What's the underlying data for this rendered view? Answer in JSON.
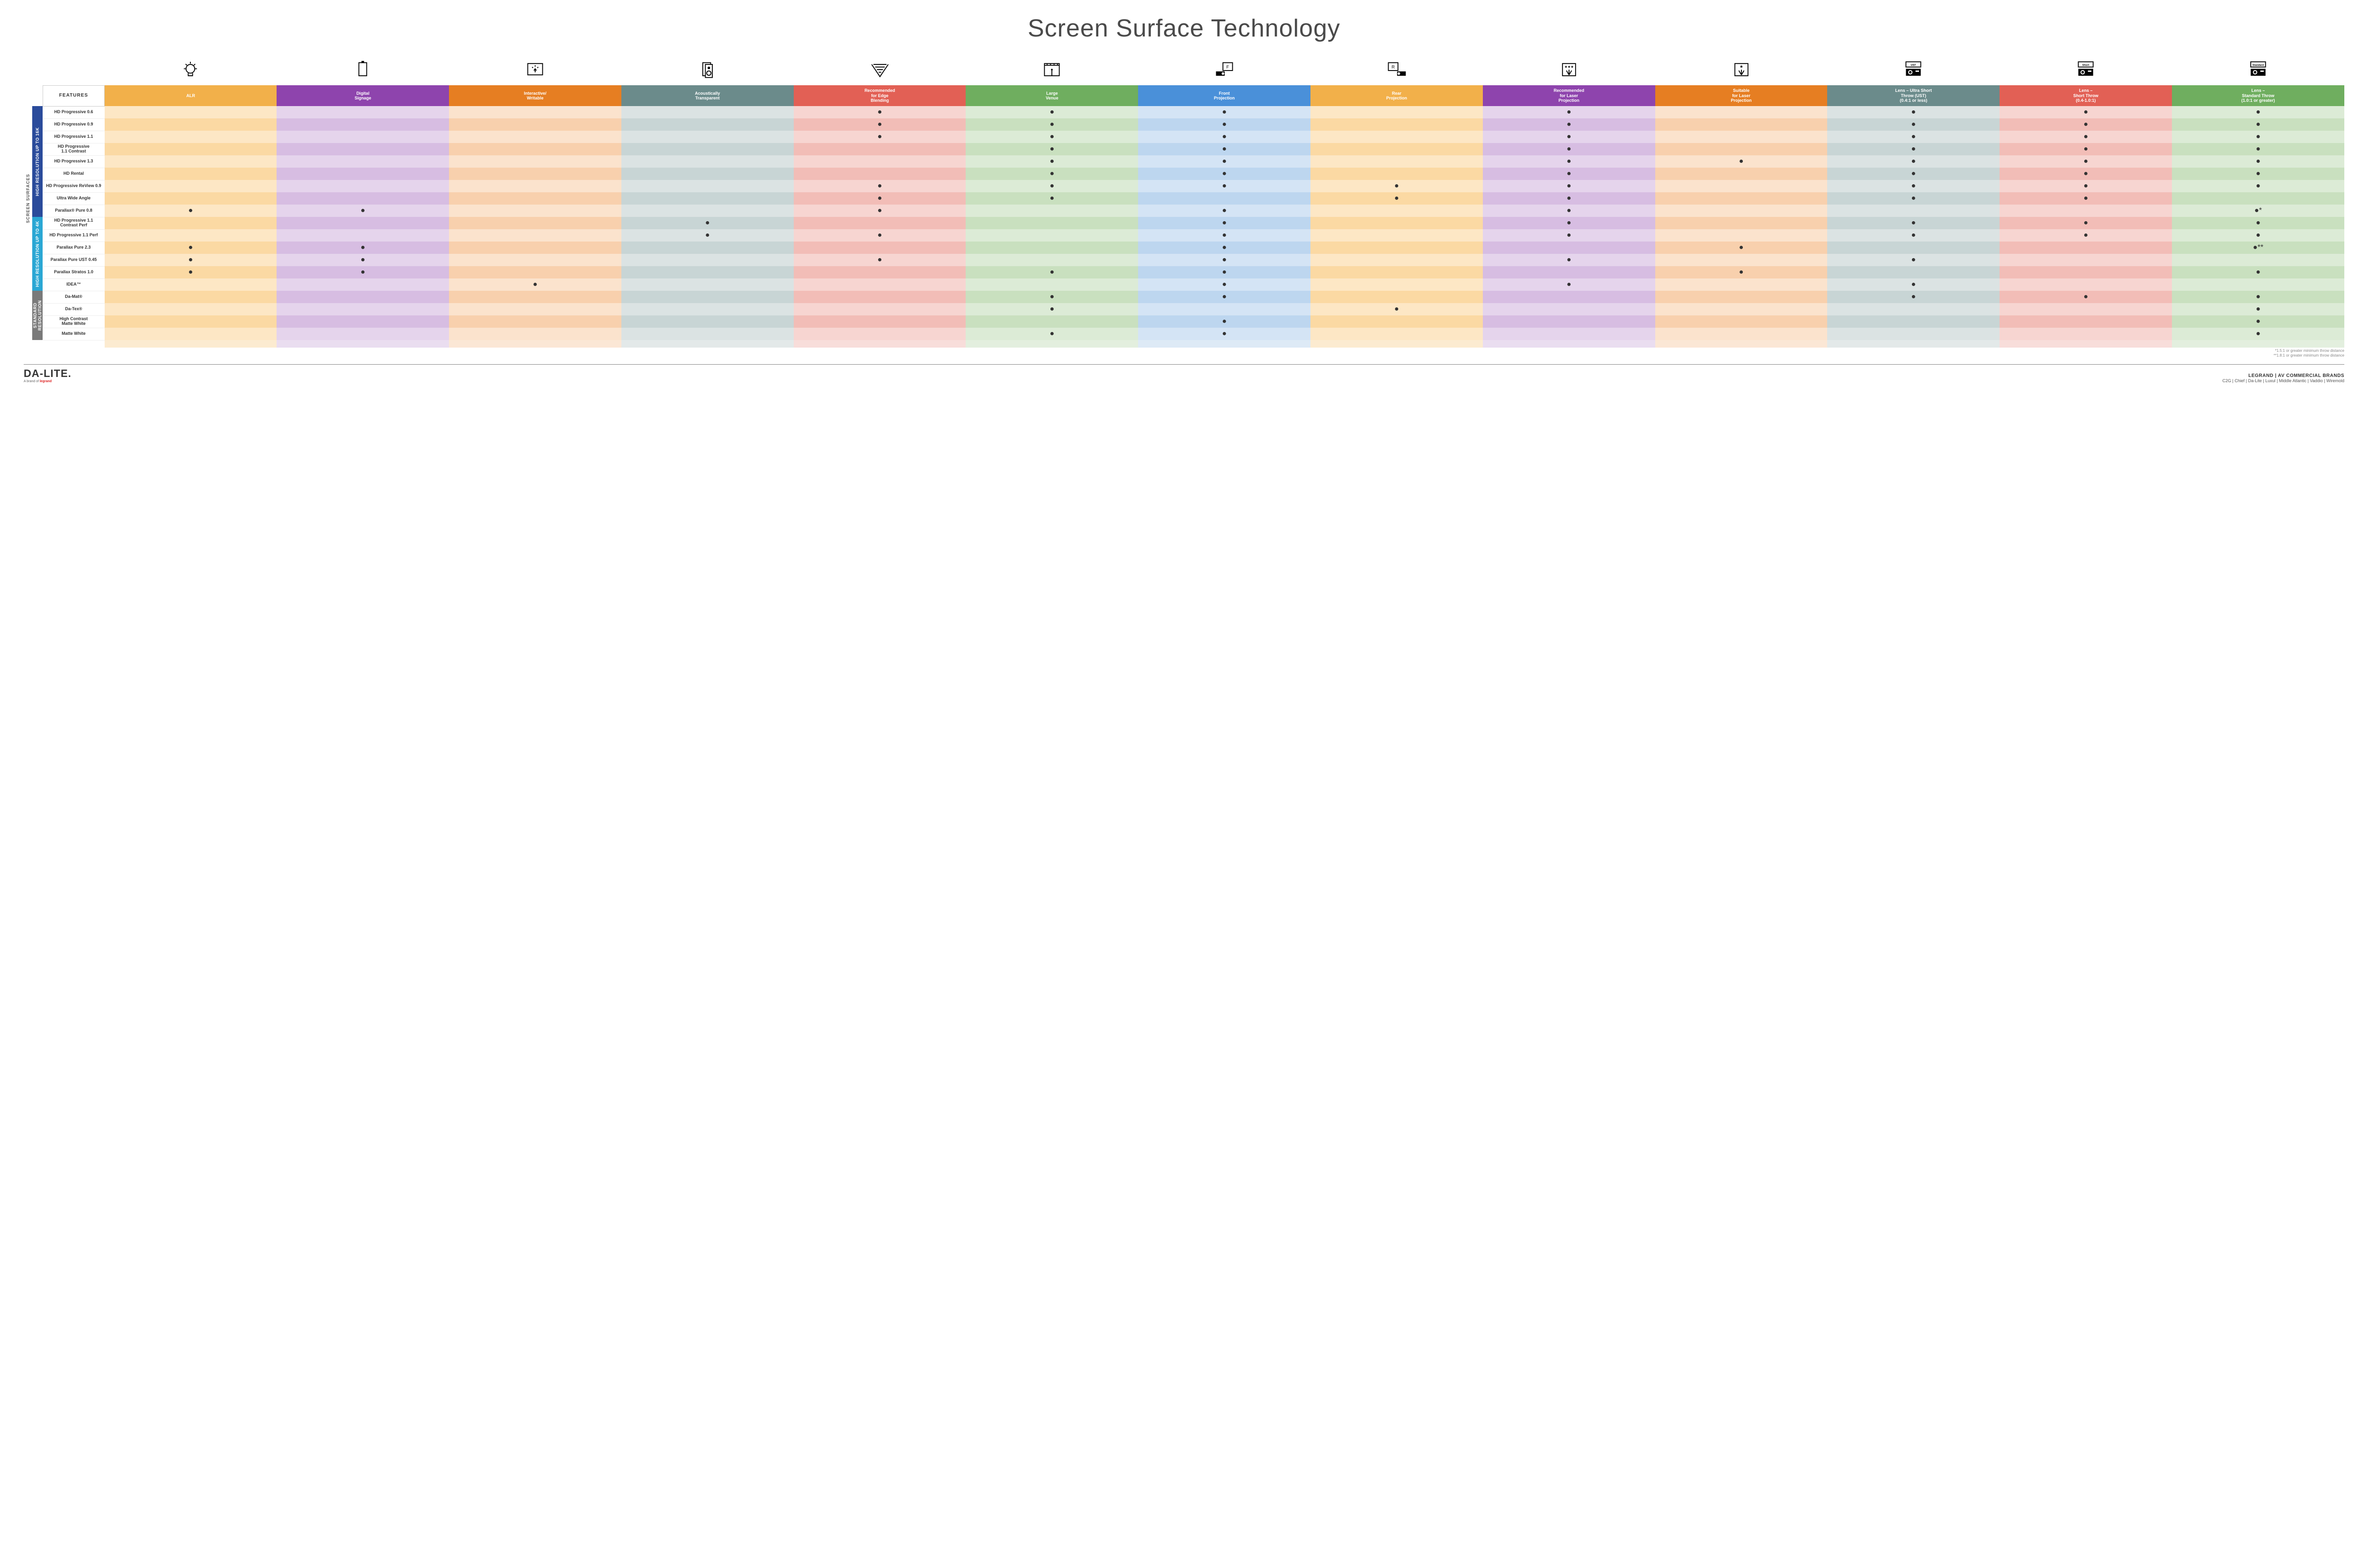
{
  "title": "Screen Surface Technology",
  "side_label": "SCREEN SURFACES",
  "features_header": "FEATURES",
  "colors": {
    "group_16k": "#2a4b9b",
    "group_4k": "#2aa7d4",
    "group_std": "#7a7a7a"
  },
  "columns": [
    {
      "id": "alr",
      "label": "ALR",
      "color": "#f2b04a",
      "icon": "bulb"
    },
    {
      "id": "signage",
      "label": "Digital\nSignage",
      "color": "#8e44ad",
      "icon": "sign"
    },
    {
      "id": "interactive",
      "label": "Interactive/\nWritable",
      "color": "#e67e22",
      "icon": "touch"
    },
    {
      "id": "acoustic",
      "label": "Acoustically\nTransparent",
      "color": "#6b8b8b",
      "icon": "speaker"
    },
    {
      "id": "edge",
      "label": "Recommended\nfor Edge\nBlending",
      "color": "#e26055",
      "icon": "blend"
    },
    {
      "id": "venue",
      "label": "Large\nVenue",
      "color": "#6fae5f",
      "icon": "venue"
    },
    {
      "id": "front",
      "label": "Front\nProjection",
      "color": "#4a90d9",
      "icon": "front"
    },
    {
      "id": "rear",
      "label": "Rear\nProjection",
      "color": "#f2b04a",
      "icon": "rear"
    },
    {
      "id": "reclaser",
      "label": "Recommended\nfor Laser\nProjection",
      "color": "#8e44ad",
      "icon": "laser3"
    },
    {
      "id": "suitlaser",
      "label": "Suitable\nfor Laser\nProjection",
      "color": "#e67e22",
      "icon": "laser1"
    },
    {
      "id": "ust",
      "label": "Lens – Ultra Short\nThrow (UST)\n(0.4:1 or less)",
      "color": "#6b8b8b",
      "icon": "proj",
      "proj_label": "UST"
    },
    {
      "id": "short",
      "label": "Lens –\nShort Throw\n(0.4-1.0:1)",
      "color": "#e26055",
      "icon": "proj",
      "proj_label": "Short"
    },
    {
      "id": "std",
      "label": "Lens –\nStandard Throw\n(1.0:1 or greater)",
      "color": "#6fae5f",
      "icon": "proj",
      "proj_label": "Standard"
    }
  ],
  "tints": {
    "#f2b04a": [
      "#fde7c5",
      "#fbd9a3"
    ],
    "#8e44ad": [
      "#e5d4ec",
      "#d7bde2"
    ],
    "#e67e22": [
      "#fbe3cd",
      "#f8d0ad"
    ],
    "#6b8b8b": [
      "#dbe3e3",
      "#c8d5d5"
    ],
    "#e26055": [
      "#f7d5d1",
      "#f2bdb7"
    ],
    "#6fae5f": [
      "#dcebd6",
      "#c9e0bf"
    ],
    "#4a90d9": [
      "#d4e4f5",
      "#bdd6ef"
    ]
  },
  "groups": [
    {
      "id": "g16k",
      "label": "HIGH RESOLUTION UP TO 16K",
      "color": "#2a4b9b",
      "rows": [
        {
          "name": "HD Progressive 0.6",
          "dots": {
            "edge": "●",
            "venue": "●",
            "front": "●",
            "reclaser": "●",
            "ust": "●",
            "short": "●",
            "std": "●"
          }
        },
        {
          "name": "HD Progressive 0.9",
          "dots": {
            "edge": "●",
            "venue": "●",
            "front": "●",
            "reclaser": "●",
            "ust": "●",
            "short": "●",
            "std": "●"
          }
        },
        {
          "name": "HD Progressive 1.1",
          "dots": {
            "edge": "●",
            "venue": "●",
            "front": "●",
            "reclaser": "●",
            "ust": "●",
            "short": "●",
            "std": "●"
          }
        },
        {
          "name": "HD Progressive\n1.1 Contrast",
          "dots": {
            "venue": "●",
            "front": "●",
            "reclaser": "●",
            "ust": "●",
            "short": "●",
            "std": "●"
          }
        },
        {
          "name": "HD Progressive 1.3",
          "dots": {
            "venue": "●",
            "front": "●",
            "reclaser": "●",
            "suitlaser": "●",
            "ust": "●",
            "short": "●",
            "std": "●"
          }
        },
        {
          "name": "HD Rental",
          "dots": {
            "venue": "●",
            "front": "●",
            "reclaser": "●",
            "ust": "●",
            "short": "●",
            "std": "●"
          }
        },
        {
          "name": "HD Progressive ReView 0.9",
          "dots": {
            "edge": "●",
            "venue": "●",
            "front": "●",
            "rear": "●",
            "reclaser": "●",
            "ust": "●",
            "short": "●",
            "std": "●"
          }
        },
        {
          "name": "Ultra Wide Angle",
          "dots": {
            "edge": "●",
            "venue": "●",
            "rear": "●",
            "reclaser": "●",
            "ust": "●",
            "short": "●"
          }
        },
        {
          "name": "Parallax® Pure 0.8",
          "dots": {
            "alr": "●",
            "signage": "●",
            "edge": "●",
            "front": "●",
            "reclaser": "●",
            "std": "●*"
          }
        }
      ]
    },
    {
      "id": "g4k",
      "label": "HIGH RESOLUTION UP TO 4K",
      "color": "#2aa7d4",
      "rows": [
        {
          "name": "HD Progressive 1.1\nContrast Perf",
          "dots": {
            "acoustic": "●",
            "front": "●",
            "reclaser": "●",
            "ust": "●",
            "short": "●",
            "std": "●"
          }
        },
        {
          "name": "HD Progressive 1.1 Perf",
          "dots": {
            "acoustic": "●",
            "edge": "●",
            "front": "●",
            "reclaser": "●",
            "ust": "●",
            "short": "●",
            "std": "●"
          }
        },
        {
          "name": "Parallax Pure 2.3",
          "dots": {
            "alr": "●",
            "signage": "●",
            "front": "●",
            "suitlaser": "●",
            "std": "●**"
          }
        },
        {
          "name": "Parallax Pure UST 0.45",
          "dots": {
            "alr": "●",
            "signage": "●",
            "edge": "●",
            "front": "●",
            "reclaser": "●",
            "ust": "●"
          }
        },
        {
          "name": "Parallax Stratos 1.0",
          "dots": {
            "alr": "●",
            "signage": "●",
            "venue": "●",
            "front": "●",
            "suitlaser": "●",
            "std": "●"
          }
        },
        {
          "name": "IDEA™",
          "dots": {
            "interactive": "●",
            "front": "●",
            "reclaser": "●",
            "ust": "●"
          }
        }
      ]
    },
    {
      "id": "gstd",
      "label": "STANDARD\nRESOLUTION",
      "color": "#7a7a7a",
      "rows": [
        {
          "name": "Da-Mat®",
          "dots": {
            "venue": "●",
            "front": "●",
            "ust": "●",
            "short": "●",
            "std": "●"
          }
        },
        {
          "name": "Da-Tex®",
          "dots": {
            "venue": "●",
            "rear": "●",
            "std": "●"
          }
        },
        {
          "name": "High Contrast\nMatte White",
          "dots": {
            "front": "●",
            "std": "●"
          }
        },
        {
          "name": "Matte White",
          "dots": {
            "venue": "●",
            "front": "●",
            "std": "●"
          }
        }
      ]
    }
  ],
  "footnotes": [
    "*1.5:1 or greater minimum throw distance",
    "**1.8:1 or greater minimum throw distance"
  ],
  "footer": {
    "logo": "DA-LITE.",
    "logo_sub_prefix": "A brand of ",
    "logo_sub_brand": "legrand",
    "brands_title": "LEGRAND | AV COMMERCIAL BRANDS",
    "brands_list": "C2G  |  Chief  |  Da-Lite  |  Luxul  |  Middle Atlantic  |  Vaddio  |  Wiremold"
  }
}
